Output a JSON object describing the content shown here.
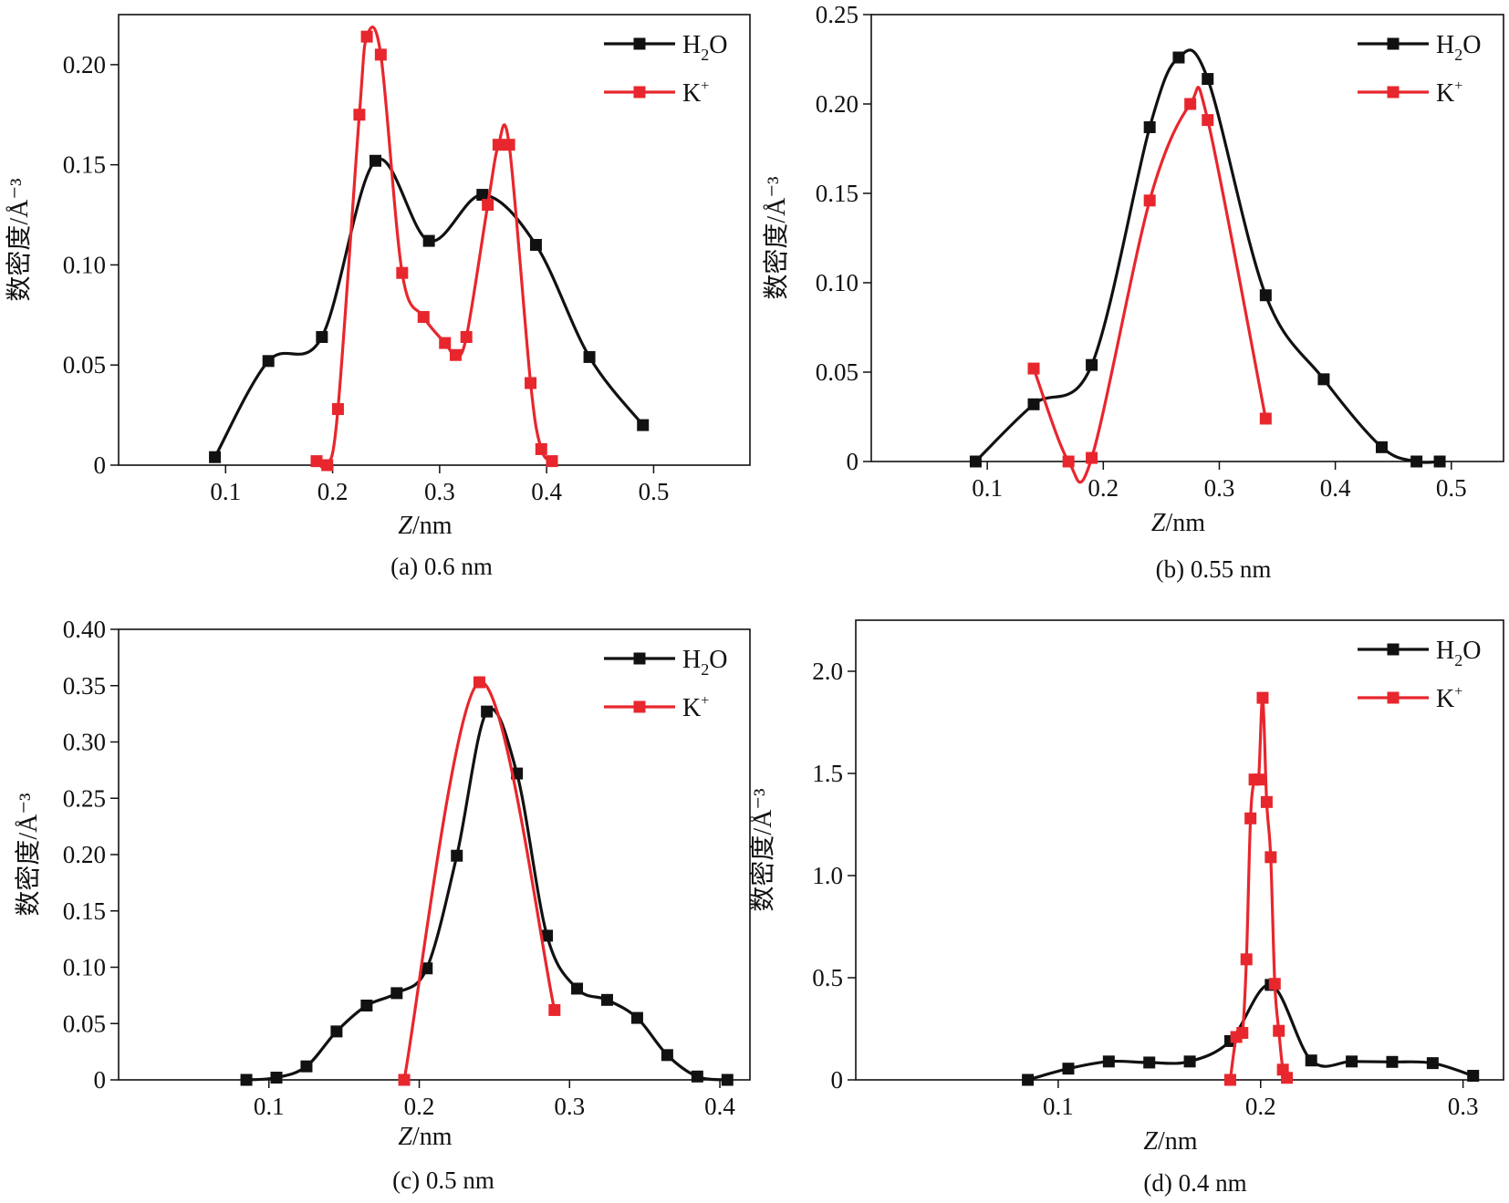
{
  "figure": {
    "colors": {
      "h2o": "#111111",
      "k": "#e8262d",
      "axis": "#111111"
    }
  },
  "chart_data": [
    {
      "type": "line",
      "caption": "(a) 0.6 nm",
      "xlabel": "Z/nm",
      "ylabel": "数密度/Å⁻³",
      "xlim": [
        0.0,
        0.59
      ],
      "ylim": [
        0,
        0.225
      ],
      "xticks": [
        "0.1",
        "0.2",
        "0.3",
        "0.4",
        "0.5"
      ],
      "yticks": [
        "0",
        "0.05",
        "0.10",
        "0.15",
        "0.20"
      ],
      "legend": [
        "H2O",
        "K+"
      ],
      "legend_position": "top-right",
      "series": [
        {
          "name": "H2O",
          "color": "#111111",
          "points": [
            [
              0.09,
              0.004
            ],
            [
              0.14,
              0.052
            ],
            [
              0.19,
              0.064
            ],
            [
              0.24,
              0.152
            ],
            [
              0.29,
              0.112
            ],
            [
              0.34,
              0.135
            ],
            [
              0.39,
              0.11
            ],
            [
              0.44,
              0.054
            ],
            [
              0.49,
              0.02
            ]
          ]
        },
        {
          "name": "K+",
          "color": "#e8262d",
          "points": [
            [
              0.185,
              0.002
            ],
            [
              0.195,
              0.0
            ],
            [
              0.205,
              0.028
            ],
            [
              0.225,
              0.175
            ],
            [
              0.232,
              0.214
            ],
            [
              0.245,
              0.205
            ],
            [
              0.265,
              0.096
            ],
            [
              0.285,
              0.074
            ],
            [
              0.305,
              0.061
            ],
            [
              0.315,
              0.055
            ],
            [
              0.325,
              0.064
            ],
            [
              0.345,
              0.13
            ],
            [
              0.355,
              0.16
            ],
            [
              0.365,
              0.16
            ],
            [
              0.385,
              0.041
            ],
            [
              0.395,
              0.008
            ],
            [
              0.405,
              0.002
            ]
          ]
        }
      ]
    },
    {
      "type": "line",
      "caption": "(b) 0.55 nm",
      "xlabel": "Z/nm",
      "ylabel": "数密度/Å⁻³",
      "xlim": [
        0.0,
        0.545
      ],
      "ylim": [
        0,
        0.25
      ],
      "xticks": [
        "0.1",
        "0.2",
        "0.3",
        "0.4",
        "0.5"
      ],
      "yticks": [
        "0",
        "0.05",
        "0.10",
        "0.15",
        "0.20",
        "0.25"
      ],
      "legend": [
        "H2O",
        "K+"
      ],
      "legend_position": "top-right",
      "series": [
        {
          "name": "H2O",
          "color": "#111111",
          "points": [
            [
              0.09,
              0.0
            ],
            [
              0.14,
              0.032
            ],
            [
              0.19,
              0.054
            ],
            [
              0.24,
              0.187
            ],
            [
              0.265,
              0.226
            ],
            [
              0.29,
              0.214
            ],
            [
              0.34,
              0.093
            ],
            [
              0.39,
              0.046
            ],
            [
              0.44,
              0.008
            ],
            [
              0.47,
              0.0
            ],
            [
              0.49,
              0.0
            ]
          ]
        },
        {
          "name": "K+",
          "color": "#e8262d",
          "points": [
            [
              0.14,
              0.052
            ],
            [
              0.17,
              0.0
            ],
            [
              0.19,
              0.002
            ],
            [
              0.24,
              0.146
            ],
            [
              0.275,
              0.2
            ],
            [
              0.29,
              0.191
            ],
            [
              0.34,
              0.024
            ]
          ]
        }
      ]
    },
    {
      "type": "line",
      "caption": "(c) 0.5 nm",
      "xlabel": "Z/nm",
      "ylabel": "数密度/Å⁻³",
      "xlim": [
        0.0,
        0.42
      ],
      "ylim": [
        0,
        0.4
      ],
      "xticks": [
        "0.1",
        "0.2",
        "0.3",
        "0.4"
      ],
      "yticks": [
        "0",
        "0.05",
        "0.10",
        "0.15",
        "0.20",
        "0.25",
        "0.30",
        "0.35",
        "0.40"
      ],
      "legend": [
        "H2O",
        "K+"
      ],
      "legend_position": "top-right",
      "series": [
        {
          "name": "H2O",
          "color": "#111111",
          "points": [
            [
              0.085,
              0.0
            ],
            [
              0.105,
              0.002
            ],
            [
              0.125,
              0.012
            ],
            [
              0.145,
              0.043
            ],
            [
              0.165,
              0.066
            ],
            [
              0.185,
              0.077
            ],
            [
              0.205,
              0.099
            ],
            [
              0.225,
              0.199
            ],
            [
              0.245,
              0.327
            ],
            [
              0.265,
              0.272
            ],
            [
              0.285,
              0.128
            ],
            [
              0.305,
              0.081
            ],
            [
              0.325,
              0.071
            ],
            [
              0.345,
              0.055
            ],
            [
              0.365,
              0.022
            ],
            [
              0.385,
              0.003
            ],
            [
              0.405,
              0.0
            ]
          ]
        },
        {
          "name": "K+",
          "color": "#e8262d",
          "points": [
            [
              0.19,
              0.0
            ],
            [
              0.24,
              0.353
            ],
            [
              0.29,
              0.062
            ]
          ]
        }
      ]
    },
    {
      "type": "line",
      "caption": "(d) 0.4 nm",
      "xlabel": "Z/nm",
      "ylabel": "数密度/Å⁻³",
      "xlim": [
        0.0,
        0.32
      ],
      "ylim": [
        0,
        2.25
      ],
      "xticks": [
        "0.1",
        "0.2",
        "0.3"
      ],
      "yticks": [
        "0",
        "0.5",
        "1.0",
        "1.5",
        "2.0"
      ],
      "legend": [
        "H2O",
        "K+"
      ],
      "legend_position": "top-right",
      "series": [
        {
          "name": "H2O",
          "color": "#111111",
          "points": [
            [
              0.085,
              0.0
            ],
            [
              0.105,
              0.055
            ],
            [
              0.125,
              0.09
            ],
            [
              0.145,
              0.085
            ],
            [
              0.165,
              0.09
            ],
            [
              0.185,
              0.19
            ],
            [
              0.205,
              0.465
            ],
            [
              0.225,
              0.095
            ],
            [
              0.245,
              0.09
            ],
            [
              0.265,
              0.088
            ],
            [
              0.285,
              0.082
            ],
            [
              0.305,
              0.02
            ]
          ]
        },
        {
          "name": "K+",
          "color": "#e8262d",
          "points": [
            [
              0.185,
              0.0
            ],
            [
              0.188,
              0.21
            ],
            [
              0.191,
              0.23
            ],
            [
              0.193,
              0.59
            ],
            [
              0.195,
              1.28
            ],
            [
              0.197,
              1.47
            ],
            [
              0.199,
              1.47
            ],
            [
              0.201,
              1.87
            ],
            [
              0.203,
              1.36
            ],
            [
              0.205,
              1.09
            ],
            [
              0.207,
              0.47
            ],
            [
              0.209,
              0.24
            ],
            [
              0.211,
              0.05
            ],
            [
              0.213,
              0.01
            ]
          ]
        }
      ]
    }
  ]
}
